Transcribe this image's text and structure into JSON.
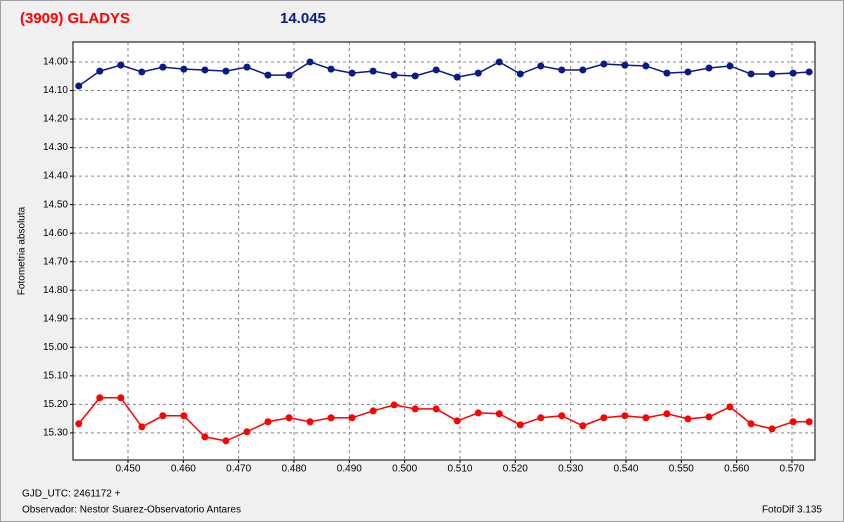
{
  "chart_data": {
    "type": "line",
    "title": "(3909) GLADYS",
    "subtitle": "14.045",
    "ylabel": "Fotometria absoluta",
    "xlabel": "GJD_UTC: 2461172 +",
    "footer_left": "Observador: Nestor Suarez-Observatorio Antares",
    "footer_right": "FotoDif 3.135",
    "x": [
      0.4411,
      0.4449,
      0.4487,
      0.4525,
      0.4563,
      0.4601,
      0.4639,
      0.4677,
      0.4715,
      0.4753,
      0.4791,
      0.4829,
      0.4867,
      0.4905,
      0.4943,
      0.4981,
      0.5019,
      0.5057,
      0.5095,
      0.5133,
      0.5171,
      0.5209,
      0.5246,
      0.5284,
      0.5322,
      0.536,
      0.5398,
      0.5436,
      0.5474,
      0.5512,
      0.555,
      0.5588,
      0.5626,
      0.5664,
      0.5702,
      0.5731
    ],
    "series": [
      {
        "color": "#0a1a8a",
        "values": [
          14.084,
          14.032,
          14.011,
          14.035,
          14.018,
          14.025,
          14.028,
          14.032,
          14.018,
          14.046,
          14.046,
          14.0,
          14.025,
          14.039,
          14.032,
          14.046,
          14.049,
          14.028,
          14.053,
          14.039,
          14.0,
          14.042,
          14.014,
          14.028,
          14.028,
          14.007,
          14.011,
          14.014,
          14.039,
          14.035,
          14.021,
          14.014,
          14.042,
          14.042,
          14.039,
          14.035
        ]
      },
      {
        "color": "#ff0000",
        "values": [
          15.268,
          15.177,
          15.177,
          15.279,
          15.24,
          15.24,
          15.314,
          15.328,
          15.296,
          15.261,
          15.247,
          15.261,
          15.247,
          15.247,
          15.223,
          15.202,
          15.216,
          15.216,
          15.258,
          15.23,
          15.233,
          15.272,
          15.247,
          15.24,
          15.275,
          15.247,
          15.24,
          15.247,
          15.233,
          15.251,
          15.244,
          15.209,
          15.268,
          15.286,
          15.261,
          15.261
        ]
      }
    ],
    "xlim": [
      0.44006,
      0.57416
    ],
    "ylim": [
      13.93,
      15.395
    ],
    "y_inverted": true,
    "grid": true,
    "xticks": [
      {
        "value": 0.45,
        "label": "0.450"
      },
      {
        "value": 0.46,
        "label": "0.460"
      },
      {
        "value": 0.47,
        "label": "0.470"
      },
      {
        "value": 0.48,
        "label": "0.480"
      },
      {
        "value": 0.49,
        "label": "0.490"
      },
      {
        "value": 0.5,
        "label": "0.500"
      },
      {
        "value": 0.51,
        "label": "0.510"
      },
      {
        "value": 0.52,
        "label": "0.520"
      },
      {
        "value": 0.53,
        "label": "0.530"
      },
      {
        "value": 0.54,
        "label": "0.540"
      },
      {
        "value": 0.55,
        "label": "0.550"
      },
      {
        "value": 0.56,
        "label": "0.560"
      },
      {
        "value": 0.57,
        "label": "0.570"
      }
    ],
    "yticks": [
      {
        "value": 14.0,
        "label": "14.00"
      },
      {
        "value": 14.1,
        "label": "14.10"
      },
      {
        "value": 14.2,
        "label": "14.20"
      },
      {
        "value": 14.3,
        "label": "14.30"
      },
      {
        "value": 14.4,
        "label": "14.40"
      },
      {
        "value": 14.5,
        "label": "14.50"
      },
      {
        "value": 14.6,
        "label": "14.60"
      },
      {
        "value": 14.7,
        "label": "14.70"
      },
      {
        "value": 14.8,
        "label": "14.80"
      },
      {
        "value": 14.9,
        "label": "14.90"
      },
      {
        "value": 15.0,
        "label": "15.00"
      },
      {
        "value": 15.1,
        "label": "15.10"
      },
      {
        "value": 15.2,
        "label": "15.20"
      },
      {
        "value": 15.3,
        "label": "15.30"
      }
    ]
  }
}
